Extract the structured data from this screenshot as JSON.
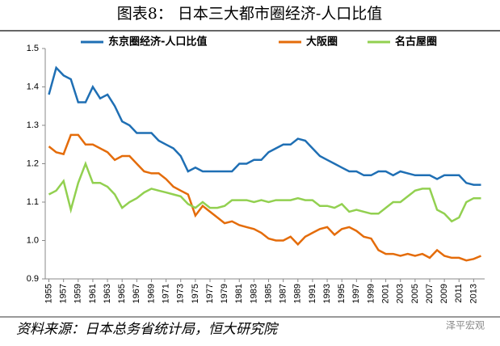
{
  "chart_data": {
    "type": "line",
    "title": "图表8：  日本三大都市圈经济-人口比值",
    "source": "资料来源：日本总务省统计局，恒大研究院",
    "watermark": "泽平宏观",
    "x": [
      1955,
      1956,
      1957,
      1958,
      1959,
      1960,
      1961,
      1962,
      1963,
      1964,
      1965,
      1966,
      1967,
      1968,
      1969,
      1970,
      1971,
      1972,
      1973,
      1974,
      1975,
      1976,
      1977,
      1978,
      1979,
      1980,
      1981,
      1982,
      1983,
      1984,
      1985,
      1986,
      1987,
      1988,
      1989,
      1990,
      1991,
      1992,
      1993,
      1994,
      1995,
      1996,
      1997,
      1998,
      1999,
      2000,
      2001,
      2002,
      2003,
      2004,
      2005,
      2006,
      2007,
      2008,
      2009,
      2010,
      2011,
      2012,
      2013,
      2014
    ],
    "series": [
      {
        "name": "东京圈经济-人口比值",
        "color": "#1f6fb4",
        "values": [
          1.38,
          1.45,
          1.43,
          1.42,
          1.36,
          1.36,
          1.4,
          1.37,
          1.38,
          1.35,
          1.31,
          1.3,
          1.28,
          1.28,
          1.28,
          1.26,
          1.25,
          1.24,
          1.22,
          1.18,
          1.19,
          1.18,
          1.18,
          1.18,
          1.18,
          1.18,
          1.2,
          1.2,
          1.21,
          1.21,
          1.23,
          1.24,
          1.25,
          1.25,
          1.265,
          1.26,
          1.24,
          1.22,
          1.21,
          1.2,
          1.19,
          1.18,
          1.18,
          1.17,
          1.17,
          1.18,
          1.18,
          1.17,
          1.18,
          1.175,
          1.17,
          1.17,
          1.17,
          1.16,
          1.17,
          1.17,
          1.17,
          1.15,
          1.145,
          1.145
        ]
      },
      {
        "name": "大阪圈",
        "color": "#e46c0a",
        "values": [
          1.245,
          1.23,
          1.225,
          1.275,
          1.275,
          1.25,
          1.25,
          1.24,
          1.23,
          1.21,
          1.22,
          1.22,
          1.2,
          1.18,
          1.175,
          1.175,
          1.16,
          1.14,
          1.13,
          1.12,
          1.065,
          1.09,
          1.075,
          1.06,
          1.045,
          1.05,
          1.04,
          1.035,
          1.03,
          1.02,
          1.005,
          1.0,
          1.0,
          1.01,
          0.99,
          1.01,
          1.02,
          1.03,
          1.035,
          1.015,
          1.03,
          1.035,
          1.025,
          1.01,
          1.005,
          0.975,
          0.965,
          0.965,
          0.96,
          0.965,
          0.96,
          0.965,
          0.955,
          0.975,
          0.96,
          0.955,
          0.955,
          0.948,
          0.952,
          0.96
        ]
      },
      {
        "name": "名古屋圈",
        "color": "#92d050",
        "values": [
          1.12,
          1.13,
          1.155,
          1.08,
          1.15,
          1.2,
          1.15,
          1.15,
          1.14,
          1.12,
          1.085,
          1.1,
          1.11,
          1.125,
          1.135,
          1.13,
          1.125,
          1.12,
          1.115,
          1.095,
          1.085,
          1.1,
          1.085,
          1.085,
          1.09,
          1.105,
          1.105,
          1.105,
          1.1,
          1.105,
          1.1,
          1.105,
          1.105,
          1.105,
          1.11,
          1.105,
          1.105,
          1.09,
          1.09,
          1.085,
          1.095,
          1.075,
          1.08,
          1.075,
          1.07,
          1.07,
          1.085,
          1.1,
          1.1,
          1.115,
          1.13,
          1.135,
          1.135,
          1.08,
          1.07,
          1.05,
          1.06,
          1.1,
          1.11,
          1.11
        ]
      }
    ],
    "xlim": [
      1954.5,
      2014.5
    ],
    "xticks": [
      1955,
      1957,
      1959,
      1961,
      1963,
      1965,
      1967,
      1969,
      1971,
      1973,
      1975,
      1977,
      1979,
      1981,
      1983,
      1985,
      1987,
      1989,
      1991,
      1993,
      1995,
      1997,
      1999,
      2001,
      2003,
      2005,
      2007,
      2009,
      2011,
      2013
    ],
    "ylim": [
      0.9,
      1.5
    ],
    "yticks": [
      0.9,
      {
        "value": 1,
        "label": "1.0"
      },
      1.1,
      1.2,
      1.3,
      1.4,
      1.5
    ],
    "legend": "top"
  }
}
